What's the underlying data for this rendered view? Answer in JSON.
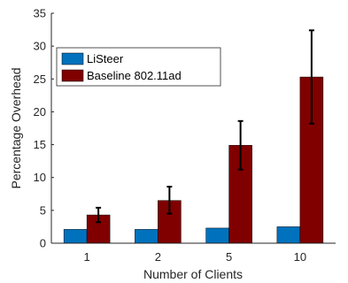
{
  "chart_data": {
    "type": "bar",
    "categories": [
      "1",
      "2",
      "5",
      "10"
    ],
    "series": [
      {
        "name": "LiSteer",
        "color": "#0072BD",
        "values": [
          2.1,
          2.1,
          2.3,
          2.5
        ]
      },
      {
        "name": "Baseline 802.11ad",
        "color": "#800000",
        "values": [
          4.3,
          6.5,
          14.9,
          25.3
        ],
        "error_low": [
          3.2,
          4.5,
          11.2,
          18.2
        ],
        "error_high": [
          5.4,
          8.6,
          18.6,
          32.4
        ]
      }
    ],
    "xlabel": "Number of Clients",
    "ylabel": "Percentage Overhead",
    "ylim": [
      0,
      35
    ],
    "yticks": [
      0,
      5,
      10,
      15,
      20,
      25,
      30,
      35
    ],
    "grid": false,
    "legend_position": "top-left"
  }
}
